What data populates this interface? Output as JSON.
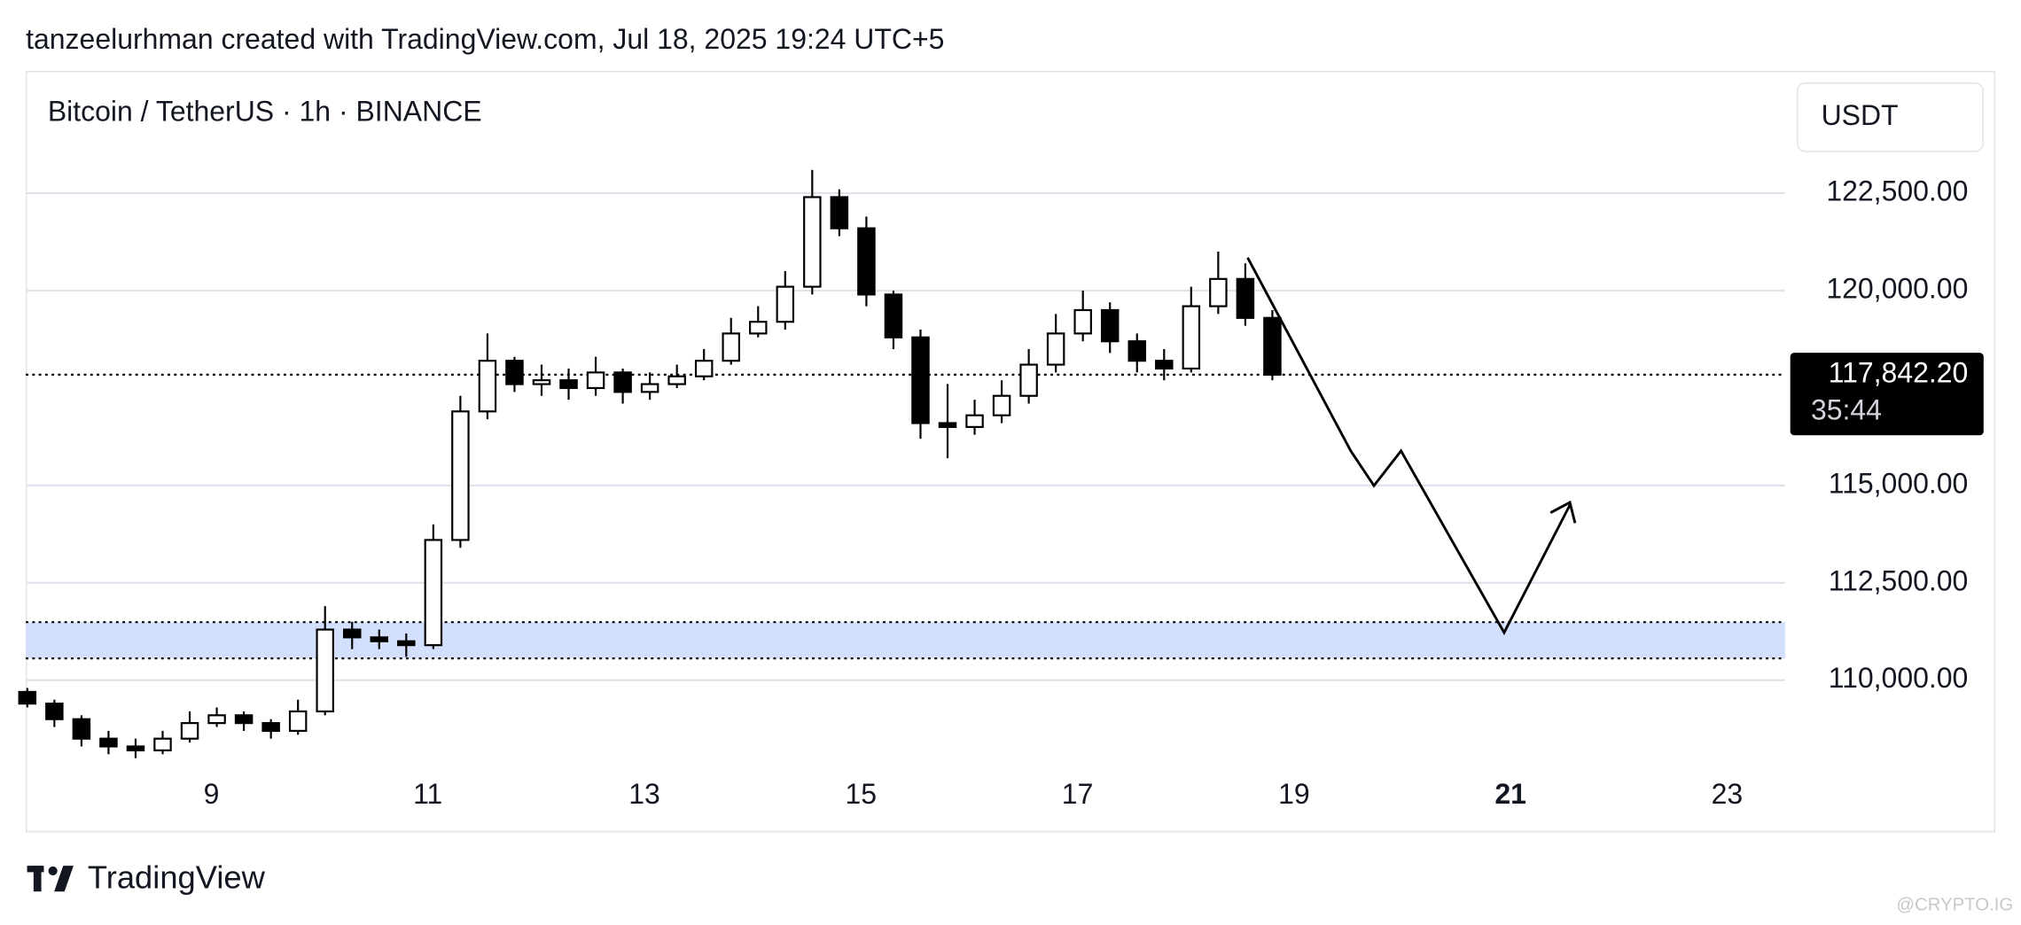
{
  "header": "tanzeelurhman created with TradingView.com, Jul 18, 2025 19:24 UTC+5",
  "footer": "TradingView",
  "watermark": "@CRYPTO.IG",
  "chart_data": {
    "type": "candlestick",
    "title": "Bitcoin / TetherUS · 1h · BINANCE",
    "currency": "USDT",
    "color": "#000000",
    "x": [
      7.3,
      7.55,
      7.8,
      8.05,
      8.3,
      8.55,
      8.8,
      9.05,
      9.3,
      9.55,
      9.8,
      10.05,
      10.3,
      10.55,
      10.8,
      11.05,
      11.3,
      11.55,
      11.8,
      12.05,
      12.3,
      12.55,
      12.8,
      13.05,
      13.3,
      13.55,
      13.8,
      14.05,
      14.3,
      14.55,
      14.8,
      15.05,
      15.3,
      15.55,
      15.8,
      16.05,
      16.3,
      16.55,
      16.8,
      17.05,
      17.3,
      17.55,
      17.8,
      18.05,
      18.3,
      18.55,
      18.8
    ],
    "open": [
      109700,
      109400,
      109000,
      108500,
      108300,
      108200,
      108500,
      108900,
      109100,
      108900,
      108700,
      109200,
      111300,
      111100,
      111000,
      110900,
      113600,
      116900,
      118200,
      117600,
      117700,
      117500,
      117900,
      117400,
      117600,
      117800,
      118200,
      118900,
      119200,
      120100,
      122400,
      121600,
      119900,
      118800,
      116600,
      116500,
      116800,
      117300,
      118100,
      118900,
      119500,
      118700,
      118200,
      118000,
      119600,
      120300,
      119300
    ],
    "high": [
      109800,
      109500,
      109100,
      108700,
      108500,
      108700,
      109200,
      109300,
      109200,
      109000,
      109500,
      111900,
      111500,
      111300,
      111200,
      114000,
      117300,
      118900,
      118300,
      118100,
      118000,
      118300,
      118000,
      117900,
      118100,
      118500,
      119300,
      119600,
      120500,
      123100,
      122600,
      121900,
      120000,
      119000,
      117600,
      117200,
      117700,
      118500,
      119400,
      120000,
      119700,
      118900,
      118500,
      120100,
      121000,
      120700,
      119500
    ],
    "low": [
      109300,
      108800,
      108300,
      108100,
      108000,
      108100,
      108400,
      108800,
      108700,
      108500,
      108600,
      109100,
      110800,
      110800,
      110600,
      110800,
      113400,
      116700,
      117400,
      117300,
      117200,
      117300,
      117100,
      117200,
      117500,
      117700,
      118100,
      118800,
      119000,
      119900,
      121400,
      119600,
      118500,
      116200,
      115700,
      116300,
      116600,
      117100,
      117900,
      118700,
      118400,
      117900,
      117700,
      117900,
      119400,
      119100,
      117700
    ],
    "close": [
      109400,
      109000,
      108500,
      108300,
      108200,
      108500,
      108900,
      109100,
      108900,
      108700,
      109200,
      111300,
      111100,
      111000,
      110900,
      113600,
      116900,
      118200,
      117600,
      117700,
      117500,
      117900,
      117400,
      117600,
      117800,
      118200,
      118900,
      119200,
      120100,
      122400,
      121600,
      119900,
      118800,
      116600,
      116500,
      116800,
      117300,
      118100,
      118900,
      119500,
      118700,
      118200,
      118000,
      119600,
      120300,
      119300,
      117842.2
    ],
    "last_price": {
      "value": 117842.2,
      "label": "117,842.20"
    },
    "countdown": "35:44",
    "highlight_zone": [
      110560,
      111490
    ],
    "zone_color": "#d3e0fd",
    "xlim": [
      7.286,
      23.536
    ],
    "xticks": [
      9,
      11,
      13,
      15,
      17,
      19,
      21,
      23
    ],
    "bold_xtick": 21,
    "ylim": [
      106131,
      125641
    ],
    "yticks": [
      {
        "value": 110000,
        "label": "110,000.00"
      },
      {
        "value": 112500,
        "label": "112,500.00"
      },
      {
        "value": 115000,
        "label": "115,000.00"
      },
      {
        "value": 120000,
        "label": "120,000.00"
      },
      {
        "value": 122500,
        "label": "122,500.00"
      }
    ],
    "grid": true
  }
}
